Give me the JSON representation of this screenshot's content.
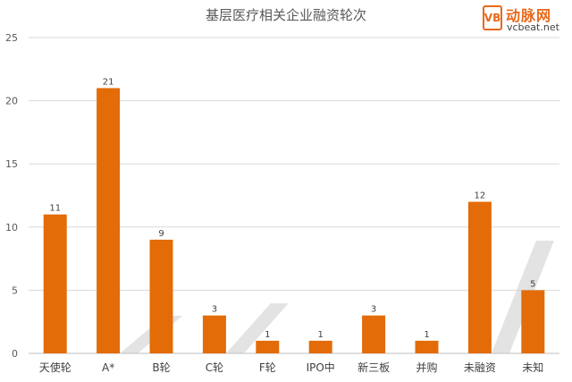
{
  "chart_data": {
    "type": "bar",
    "title": "基层医疗相关企业融资轮次",
    "categories": [
      "天使轮",
      "A*",
      "B轮",
      "C轮",
      "F轮",
      "IPO中",
      "新三板",
      "并购",
      "未融资",
      "未知"
    ],
    "values": [
      11,
      21,
      9,
      3,
      1,
      1,
      3,
      1,
      12,
      5
    ],
    "yticks": [
      "0",
      "5",
      "10",
      "15",
      "20",
      "25"
    ],
    "ylim": [
      0,
      25
    ],
    "grid": true,
    "bar_color": "#e36c09"
  },
  "logo": {
    "mark": "VB",
    "name_cn": "动脉网",
    "name_en": "vcbeat.net"
  }
}
